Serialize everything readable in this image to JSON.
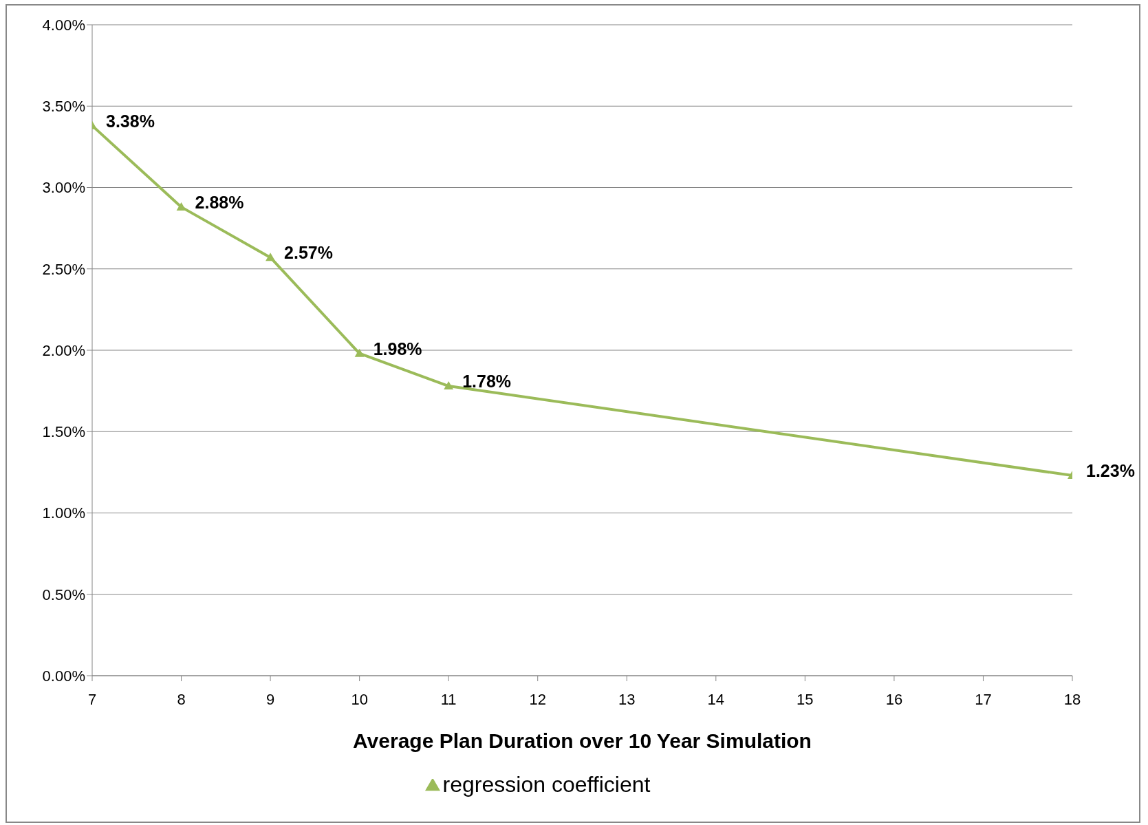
{
  "chart_data": {
    "type": "line",
    "xlabel": "Average Plan Duration over 10 Year Simulation",
    "x": [
      7,
      8,
      9,
      10,
      11,
      18
    ],
    "series": [
      {
        "name": "regression coefficient",
        "color": "#9bbb59",
        "values": [
          3.38,
          2.88,
          2.57,
          1.98,
          1.78,
          1.23
        ],
        "value_labels": [
          "3.38%",
          "2.88%",
          "2.57%",
          "1.98%",
          "1.78%",
          "1.23%"
        ]
      }
    ],
    "xlim": [
      7,
      18
    ],
    "xticks": [
      7,
      8,
      9,
      10,
      11,
      12,
      13,
      14,
      15,
      16,
      17,
      18
    ],
    "ylim": [
      0,
      4
    ],
    "yticks": [
      {
        "value": 0,
        "label": "0.00%"
      },
      {
        "value": 0.5,
        "label": "0.50%"
      },
      {
        "value": 1,
        "label": "1.00%"
      },
      {
        "value": 1.5,
        "label": "1.50%"
      },
      {
        "value": 2,
        "label": "2.00%"
      },
      {
        "value": 2.5,
        "label": "2.50%"
      },
      {
        "value": 3,
        "label": "3.00%"
      },
      {
        "value": 3.5,
        "label": "3.50%"
      },
      {
        "value": 4,
        "label": "4.00%"
      }
    ],
    "grid": "y",
    "legend": "bottom",
    "marker": "triangle",
    "line_style": "solid"
  }
}
